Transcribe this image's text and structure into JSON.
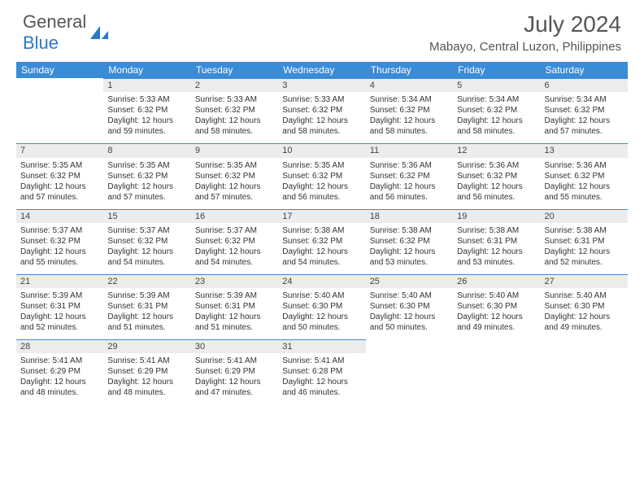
{
  "logo": {
    "line1": "General",
    "line2": "Blue"
  },
  "title": "July 2024",
  "location": "Mabayo, Central Luzon, Philippines",
  "colors": {
    "header_bg": "#3a8bd8",
    "header_text": "#ffffff",
    "daynum_bg": "#ececec",
    "daynum_border": "#3a8bd8",
    "body_bg": "#ffffff",
    "text": "#333333",
    "logo_gray": "#555555",
    "logo_blue": "#2b78c4"
  },
  "weekdays": [
    "Sunday",
    "Monday",
    "Tuesday",
    "Wednesday",
    "Thursday",
    "Friday",
    "Saturday"
  ],
  "first_weekday_index": 1,
  "days": [
    {
      "n": 1,
      "sr": "5:33 AM",
      "ss": "6:32 PM",
      "dl": "12 hours and 59 minutes."
    },
    {
      "n": 2,
      "sr": "5:33 AM",
      "ss": "6:32 PM",
      "dl": "12 hours and 58 minutes."
    },
    {
      "n": 3,
      "sr": "5:33 AM",
      "ss": "6:32 PM",
      "dl": "12 hours and 58 minutes."
    },
    {
      "n": 4,
      "sr": "5:34 AM",
      "ss": "6:32 PM",
      "dl": "12 hours and 58 minutes."
    },
    {
      "n": 5,
      "sr": "5:34 AM",
      "ss": "6:32 PM",
      "dl": "12 hours and 58 minutes."
    },
    {
      "n": 6,
      "sr": "5:34 AM",
      "ss": "6:32 PM",
      "dl": "12 hours and 57 minutes."
    },
    {
      "n": 7,
      "sr": "5:35 AM",
      "ss": "6:32 PM",
      "dl": "12 hours and 57 minutes."
    },
    {
      "n": 8,
      "sr": "5:35 AM",
      "ss": "6:32 PM",
      "dl": "12 hours and 57 minutes."
    },
    {
      "n": 9,
      "sr": "5:35 AM",
      "ss": "6:32 PM",
      "dl": "12 hours and 57 minutes."
    },
    {
      "n": 10,
      "sr": "5:35 AM",
      "ss": "6:32 PM",
      "dl": "12 hours and 56 minutes."
    },
    {
      "n": 11,
      "sr": "5:36 AM",
      "ss": "6:32 PM",
      "dl": "12 hours and 56 minutes."
    },
    {
      "n": 12,
      "sr": "5:36 AM",
      "ss": "6:32 PM",
      "dl": "12 hours and 56 minutes."
    },
    {
      "n": 13,
      "sr": "5:36 AM",
      "ss": "6:32 PM",
      "dl": "12 hours and 55 minutes."
    },
    {
      "n": 14,
      "sr": "5:37 AM",
      "ss": "6:32 PM",
      "dl": "12 hours and 55 minutes."
    },
    {
      "n": 15,
      "sr": "5:37 AM",
      "ss": "6:32 PM",
      "dl": "12 hours and 54 minutes."
    },
    {
      "n": 16,
      "sr": "5:37 AM",
      "ss": "6:32 PM",
      "dl": "12 hours and 54 minutes."
    },
    {
      "n": 17,
      "sr": "5:38 AM",
      "ss": "6:32 PM",
      "dl": "12 hours and 54 minutes."
    },
    {
      "n": 18,
      "sr": "5:38 AM",
      "ss": "6:32 PM",
      "dl": "12 hours and 53 minutes."
    },
    {
      "n": 19,
      "sr": "5:38 AM",
      "ss": "6:31 PM",
      "dl": "12 hours and 53 minutes."
    },
    {
      "n": 20,
      "sr": "5:38 AM",
      "ss": "6:31 PM",
      "dl": "12 hours and 52 minutes."
    },
    {
      "n": 21,
      "sr": "5:39 AM",
      "ss": "6:31 PM",
      "dl": "12 hours and 52 minutes."
    },
    {
      "n": 22,
      "sr": "5:39 AM",
      "ss": "6:31 PM",
      "dl": "12 hours and 51 minutes."
    },
    {
      "n": 23,
      "sr": "5:39 AM",
      "ss": "6:31 PM",
      "dl": "12 hours and 51 minutes."
    },
    {
      "n": 24,
      "sr": "5:40 AM",
      "ss": "6:30 PM",
      "dl": "12 hours and 50 minutes."
    },
    {
      "n": 25,
      "sr": "5:40 AM",
      "ss": "6:30 PM",
      "dl": "12 hours and 50 minutes."
    },
    {
      "n": 26,
      "sr": "5:40 AM",
      "ss": "6:30 PM",
      "dl": "12 hours and 49 minutes."
    },
    {
      "n": 27,
      "sr": "5:40 AM",
      "ss": "6:30 PM",
      "dl": "12 hours and 49 minutes."
    },
    {
      "n": 28,
      "sr": "5:41 AM",
      "ss": "6:29 PM",
      "dl": "12 hours and 48 minutes."
    },
    {
      "n": 29,
      "sr": "5:41 AM",
      "ss": "6:29 PM",
      "dl": "12 hours and 48 minutes."
    },
    {
      "n": 30,
      "sr": "5:41 AM",
      "ss": "6:29 PM",
      "dl": "12 hours and 47 minutes."
    },
    {
      "n": 31,
      "sr": "5:41 AM",
      "ss": "6:28 PM",
      "dl": "12 hours and 46 minutes."
    }
  ],
  "labels": {
    "sunrise": "Sunrise:",
    "sunset": "Sunset:",
    "daylight": "Daylight:"
  }
}
